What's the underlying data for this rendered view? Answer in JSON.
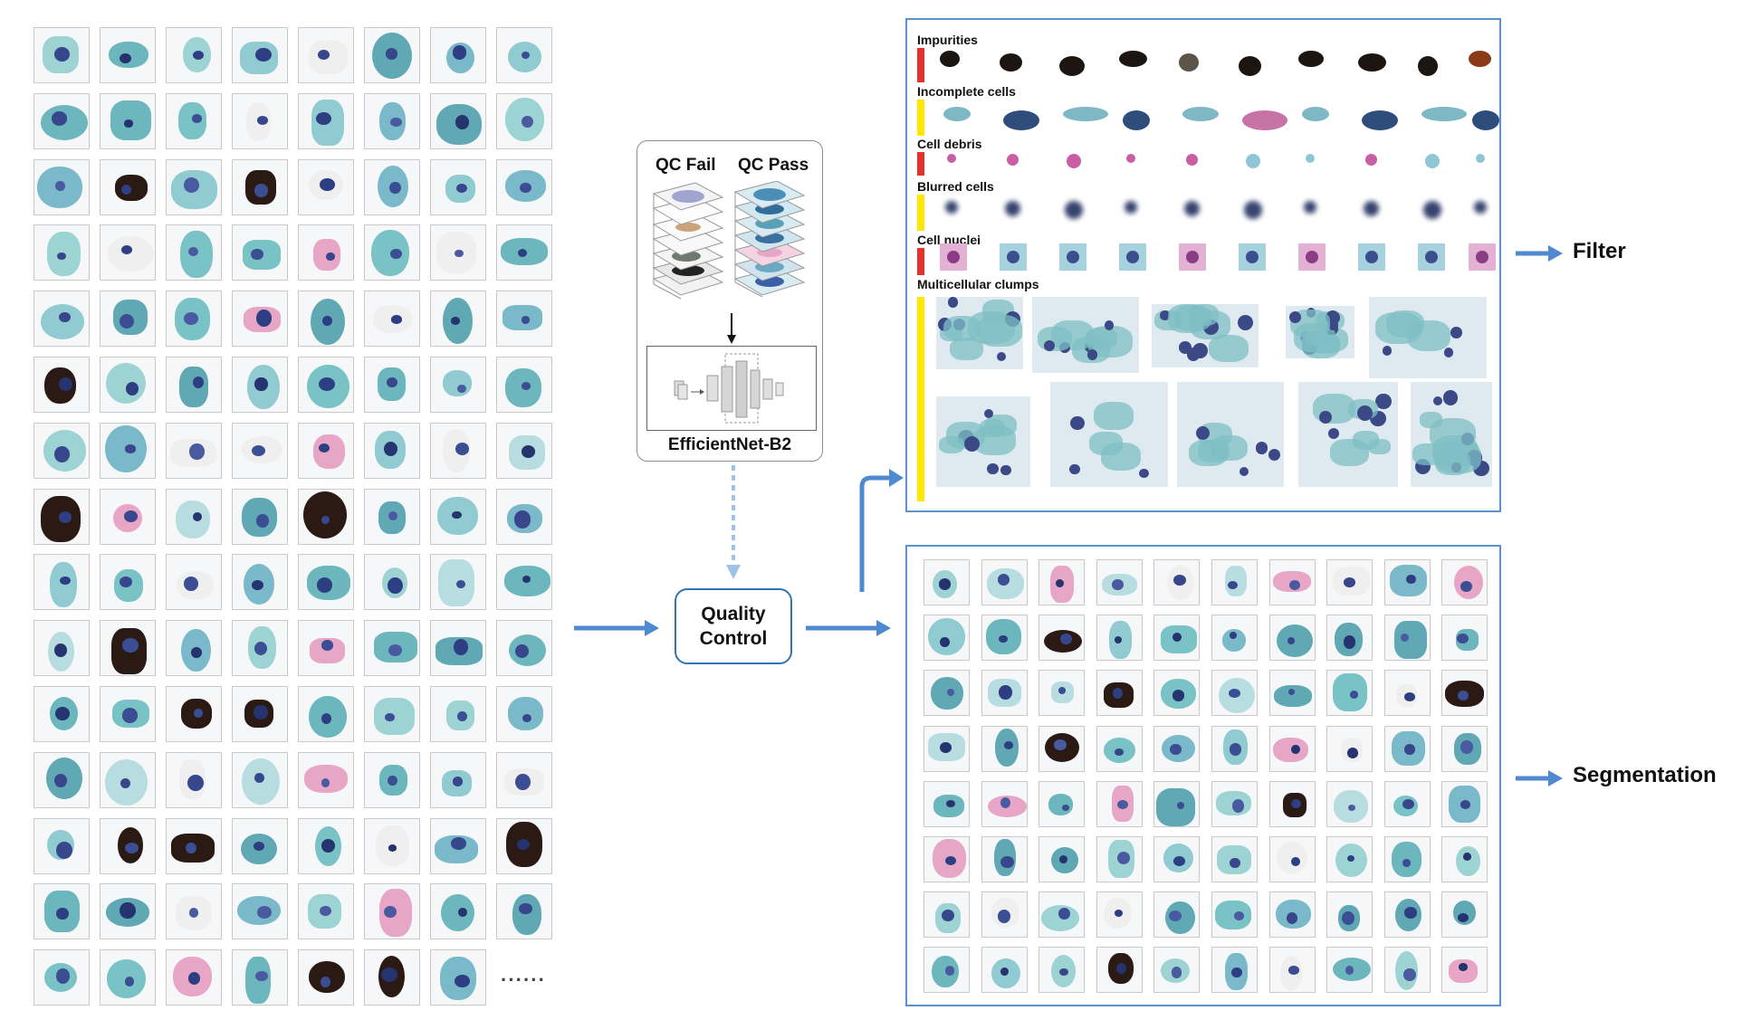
{
  "qc_box": {
    "fail_label": "QC Fail",
    "pass_label": "QC Pass",
    "model_label": "EfficientNet-B2"
  },
  "quality_control": {
    "label": "Quality\nControl"
  },
  "input_grid": {
    "rows": 15,
    "cols": 8,
    "ellipsis": "······"
  },
  "filter_panel": {
    "categories": [
      {
        "label": "Impurities",
        "bar_color": "#e8302b"
      },
      {
        "label": "Incomplete cells",
        "bar_color": "#ffe800"
      },
      {
        "label": "Cell debris",
        "bar_color": "#e8302b"
      },
      {
        "label": "Blurred cells",
        "bar_color": "#ffe800"
      },
      {
        "label": "Cell nuclei",
        "bar_color": "#e8302b"
      },
      {
        "label": "Multicellular clumps",
        "bar_color": "#ffe800"
      }
    ]
  },
  "segmentation_panel": {
    "rows": 8,
    "cols": 10
  },
  "outputs": {
    "filter": "Filter",
    "segmentation": "Segmentation"
  },
  "colors": {
    "arrow": "#4f8ad1",
    "panel_border": "#5b8fd0",
    "qc_border": "#2e75b6",
    "dashed_arrow": "#9dc3e6"
  }
}
